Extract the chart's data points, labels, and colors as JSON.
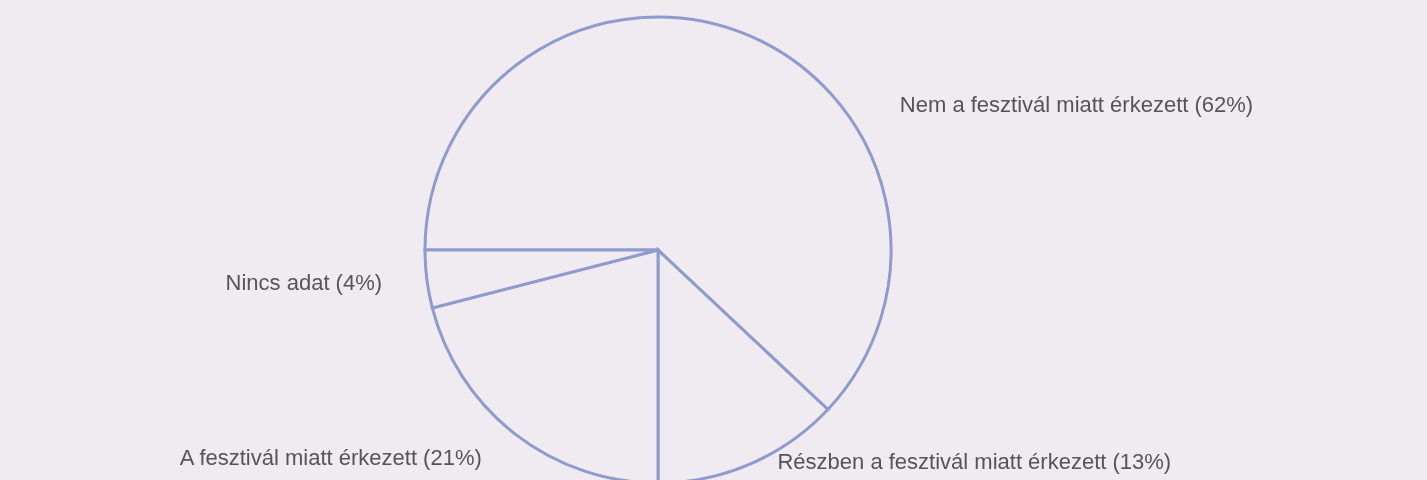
{
  "chart_data": {
    "type": "pie",
    "categories": [
      "Nem a fesztivál miatt érkezett (62%)",
      "Részben a fesztivál miatt érkezett (13%)",
      "A fesztivál miatt érkezett (21%)",
      "Nincs adat (4%)"
    ],
    "values": [
      62,
      13,
      21,
      4
    ],
    "colors": [
      "#efebf1",
      "#efebf1",
      "#efebf1",
      "#efebf1"
    ]
  }
}
